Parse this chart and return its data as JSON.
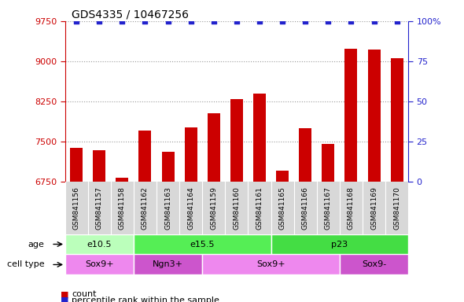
{
  "title": "GDS4335 / 10467256",
  "samples": [
    "GSM841156",
    "GSM841157",
    "GSM841158",
    "GSM841162",
    "GSM841163",
    "GSM841164",
    "GSM841159",
    "GSM841160",
    "GSM841161",
    "GSM841165",
    "GSM841166",
    "GSM841167",
    "GSM841168",
    "GSM841169",
    "GSM841170"
  ],
  "counts": [
    7380,
    7330,
    6820,
    7710,
    7300,
    7760,
    8030,
    8290,
    8390,
    6960,
    7750,
    7450,
    9240,
    9220,
    9050
  ],
  "ylim_left": [
    6750,
    9750
  ],
  "ylim_right": [
    0,
    100
  ],
  "yticks_left": [
    6750,
    7500,
    8250,
    9000,
    9750
  ],
  "yticks_right": [
    0,
    25,
    50,
    75,
    100
  ],
  "bar_color": "#cc0000",
  "percentile_color": "#2222cc",
  "bar_width": 0.55,
  "age_groups": [
    {
      "label": "e10.5",
      "start": 0,
      "end": 3,
      "color": "#bbffbb"
    },
    {
      "label": "e15.5",
      "start": 3,
      "end": 9,
      "color": "#55ee55"
    },
    {
      "label": "p23",
      "start": 9,
      "end": 15,
      "color": "#44dd44"
    }
  ],
  "cell_type_groups": [
    {
      "label": "Sox9+",
      "start": 0,
      "end": 3,
      "color": "#ee88ee"
    },
    {
      "label": "Ngn3+",
      "start": 3,
      "end": 6,
      "color": "#cc55cc"
    },
    {
      "label": "Sox9+",
      "start": 6,
      "end": 12,
      "color": "#ee88ee"
    },
    {
      "label": "Sox9-",
      "start": 12,
      "end": 15,
      "color": "#cc55cc"
    }
  ],
  "legend_count_color": "#cc0000",
  "legend_percentile_color": "#2222cc",
  "tick_label_color_left": "#cc0000",
  "tick_label_color_right": "#2222cc",
  "grid_linestyle": "dotted",
  "xlabel_gray": "#c8c8c8",
  "label_fontsize": 8,
  "title_fontsize": 10
}
